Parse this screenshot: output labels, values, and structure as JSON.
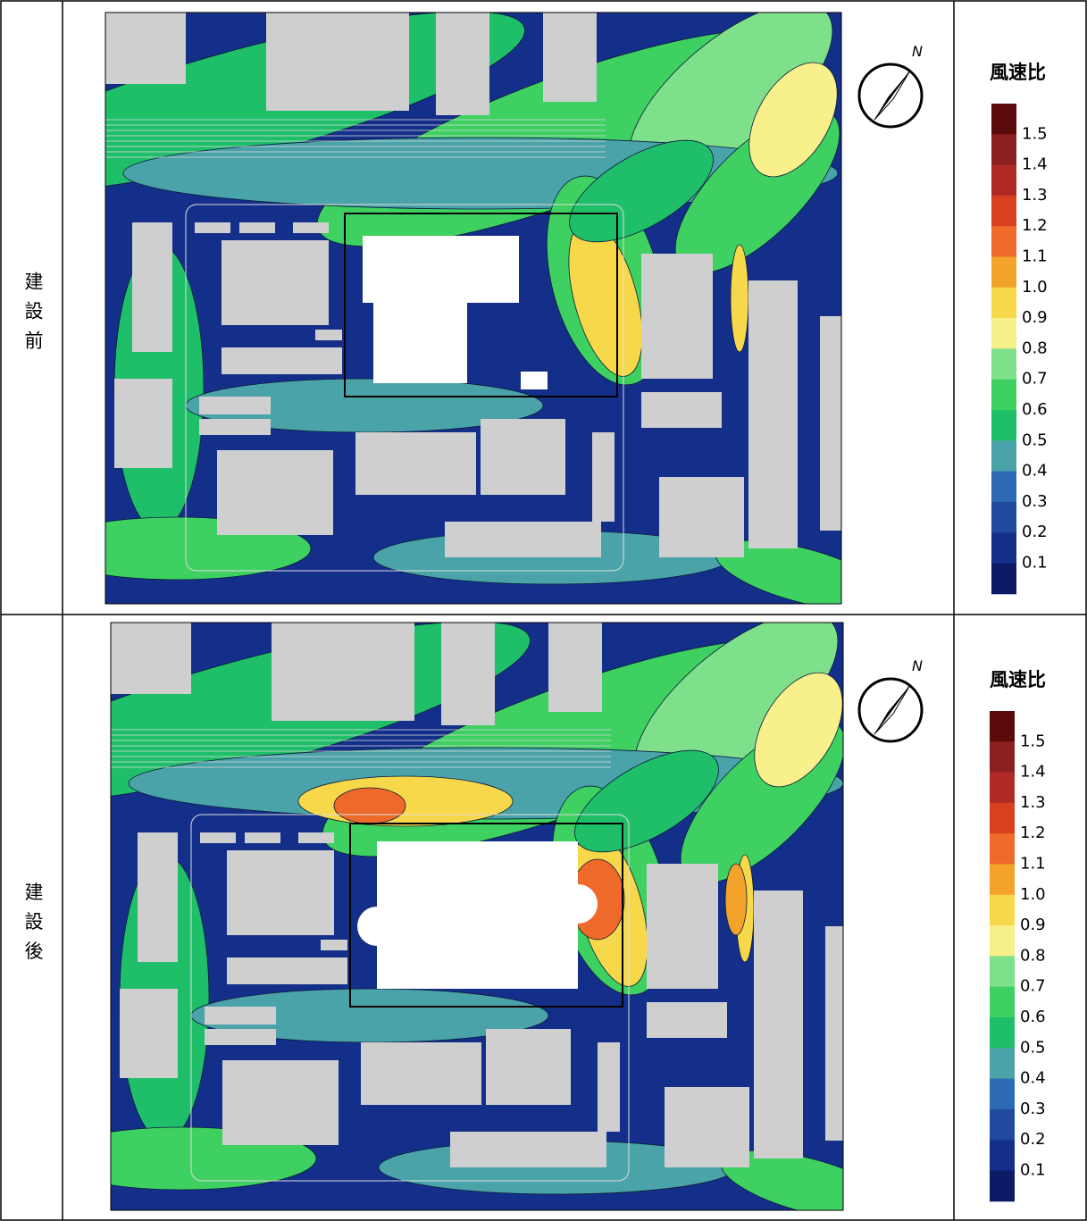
{
  "rows": [
    {
      "label": "建設前",
      "north": "N",
      "legend": {
        "title": "風速比",
        "labels": [
          "1.5",
          "1.4",
          "1.3",
          "1.2",
          "1.1",
          "1.0",
          "0.9",
          "0.8",
          "0.7",
          "0.6",
          "0.5",
          "0.4",
          "0.3",
          "0.2",
          "0.1"
        ]
      }
    },
    {
      "label": "建設後",
      "north": "N",
      "legend": {
        "title": "風速比",
        "labels": [
          "1.5",
          "1.4",
          "1.3",
          "1.2",
          "1.1",
          "1.0",
          "0.9",
          "0.8",
          "0.7",
          "0.6",
          "0.5",
          "0.4",
          "0.3",
          "0.2",
          "0.1"
        ]
      }
    }
  ],
  "legend_colors": [
    "#5a0a0a",
    "#8b2020",
    "#b02a25",
    "#d8401f",
    "#ee6a2a",
    "#f3a32a",
    "#f6d84a",
    "#f8f08a",
    "#7ee08a",
    "#3ed061",
    "#1fbf6a",
    "#4aa3a8",
    "#2e6bb5",
    "#1f4aa0",
    "#142f8a",
    "#0d1a66"
  ]
}
